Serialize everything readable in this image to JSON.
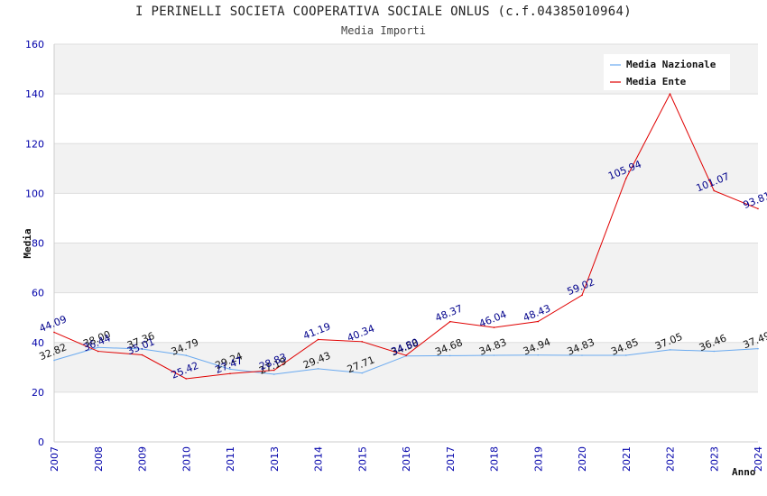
{
  "header": {
    "title": "I PERINELLI SOCIETA COOPERATIVA SOCIALE ONLUS (c.f.04385010964)",
    "subtitle": "Media Importi"
  },
  "chart_data": {
    "type": "line",
    "title": "I PERINELLI SOCIETA COOPERATIVA SOCIALE ONLUS (c.f.04385010964)",
    "subtitle": "Media Importi",
    "xlabel": "Anno",
    "ylabel": "Media",
    "ylim": [
      0,
      160
    ],
    "yticks": [
      0,
      20,
      40,
      60,
      80,
      100,
      120,
      140,
      160
    ],
    "categories": [
      "2007",
      "2008",
      "2009",
      "2010",
      "2011",
      "2013",
      "2014",
      "2015",
      "2016",
      "2017",
      "2018",
      "2019",
      "2020",
      "2021",
      "2022",
      "2023",
      "2024"
    ],
    "series": [
      {
        "name": "Media Nazionale",
        "color": "#6aaaf0",
        "label_color": "#111111",
        "values": [
          32.82,
          38.0,
          37.36,
          34.79,
          29.24,
          27.19,
          29.43,
          27.71,
          34.58,
          34.68,
          34.83,
          34.94,
          34.83,
          34.85,
          37.05,
          36.46,
          37.49
        ],
        "labels": [
          "32.82",
          "38.00",
          "37.36",
          "34.79",
          "29.24",
          "27.19",
          "29.43",
          "27.71",
          "34.58",
          "34.68",
          "34.83",
          "34.94",
          "34.83",
          "34.85",
          "37.05",
          "36.46",
          "37.49"
        ]
      },
      {
        "name": "Media Ente",
        "color": "#e00000",
        "label_color": "#00008b",
        "values": [
          44.09,
          36.44,
          35.01,
          25.42,
          27.47,
          28.83,
          41.19,
          40.34,
          34.8,
          48.37,
          46.04,
          48.43,
          59.02,
          105.94,
          140.0,
          101.07,
          93.81
        ],
        "labels": [
          "44.09",
          "36.44",
          "35.01",
          "25.42",
          "27.47",
          "28.83",
          "41.19",
          "40.34",
          "34.80",
          "48.37",
          "46.04",
          "48.43",
          "59.02",
          "105.94",
          "",
          "101.07",
          "93.81"
        ]
      }
    ],
    "grid": true,
    "legend": "top-right"
  }
}
